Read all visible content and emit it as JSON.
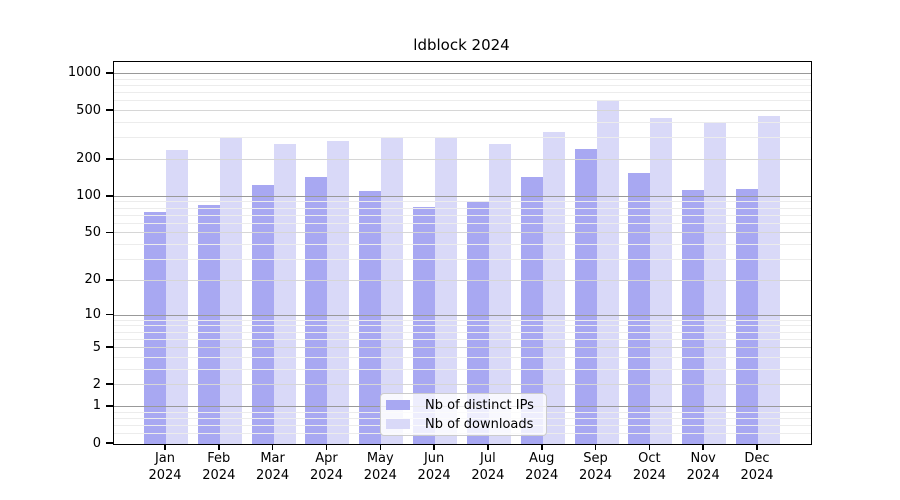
{
  "title": "ldblock 2024",
  "legend": {
    "items": [
      {
        "label": "Nb of distinct IPs",
        "swatch": "#a8a8f2"
      },
      {
        "label": "Nb of downloads",
        "swatch": "#d9d9f8"
      }
    ]
  },
  "chart_data": {
    "type": "bar",
    "title": "ldblock 2024",
    "yscale": "log1p",
    "grid": true,
    "legend_position": "lower center",
    "categories": [
      "Jan 2024",
      "Feb 2024",
      "Mar 2024",
      "Apr 2024",
      "May 2024",
      "Jun 2024",
      "Jul 2024",
      "Aug 2024",
      "Sep 2024",
      "Oct 2024",
      "Nov 2024",
      "Dec 2024"
    ],
    "series": [
      {
        "name": "Nb of distinct IPs",
        "color": "#a8a8f2",
        "values": [
          75,
          85,
          125,
          145,
          112,
          83,
          92,
          145,
          245,
          158,
          114,
          117
        ]
      },
      {
        "name": "Nb of downloads",
        "color": "#d9d9f8",
        "values": [
          240,
          310,
          270,
          285,
          310,
          310,
          272,
          340,
          600,
          440,
          410,
          455
        ]
      }
    ],
    "ylim": [
      0,
      1250
    ],
    "y_ticks": [
      0,
      1,
      2,
      5,
      10,
      20,
      50,
      100,
      200,
      500,
      1000
    ],
    "y_minor_ticks": [
      0.2,
      0.4,
      0.6,
      0.8,
      3,
      4,
      6,
      7,
      8,
      9,
      30,
      40,
      60,
      70,
      80,
      90,
      300,
      400,
      600,
      700,
      800,
      900
    ],
    "xlabel": "",
    "ylabel": ""
  }
}
